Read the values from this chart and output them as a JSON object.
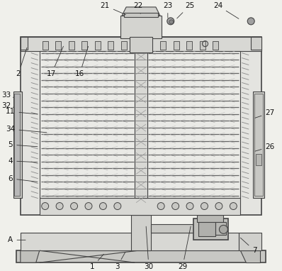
{
  "bg": "#f0f0eb",
  "lc": "#444444",
  "fc_light": "#e8e8e4",
  "fc_mid": "#d4d4d0",
  "fc_dark": "#c0c0bc",
  "fc_roller": "#c8c8c4",
  "shelf_color": "#888888",
  "hatch_color": "#aaaaaa"
}
